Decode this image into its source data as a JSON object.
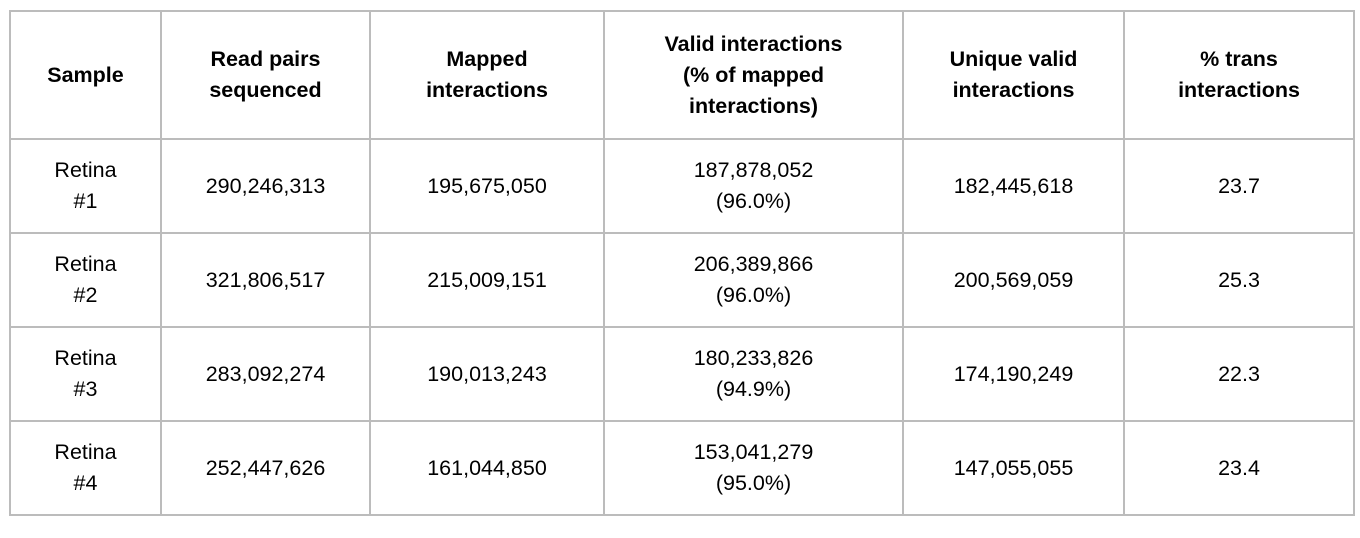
{
  "colors": {
    "background": "#ffffff",
    "border": "#bcbcbc",
    "text": "#000000"
  },
  "table": {
    "columns": [
      {
        "key": "sample",
        "label": "Sample"
      },
      {
        "key": "read_pairs",
        "label": "Read pairs\nsequenced"
      },
      {
        "key": "mapped",
        "label": "Mapped\ninteractions"
      },
      {
        "key": "valid",
        "label": "Valid interactions\n(% of mapped\ninteractions)"
      },
      {
        "key": "unique_valid",
        "label": "Unique valid\ninteractions"
      },
      {
        "key": "pct_trans",
        "label": "% trans\ninteractions"
      }
    ],
    "rows": [
      {
        "sample": "Retina\n#1",
        "read_pairs": "290,246,313",
        "mapped": "195,675,050",
        "valid": "187,878,052\n(96.0%)",
        "unique_valid": "182,445,618",
        "pct_trans": "23.7"
      },
      {
        "sample": "Retina\n#2",
        "read_pairs": "321,806,517",
        "mapped": "215,009,151",
        "valid": "206,389,866\n(96.0%)",
        "unique_valid": "200,569,059",
        "pct_trans": "25.3"
      },
      {
        "sample": "Retina\n#3",
        "read_pairs": "283,092,274",
        "mapped": "190,013,243",
        "valid": "180,233,826\n(94.9%)",
        "unique_valid": "174,190,249",
        "pct_trans": "22.3"
      },
      {
        "sample": "Retina\n#4",
        "read_pairs": "252,447,626",
        "mapped": "161,044,850",
        "valid": "153,041,279\n(95.0%)",
        "unique_valid": "147,055,055",
        "pct_trans": "23.4"
      }
    ]
  },
  "chart_data": {
    "type": "table",
    "title": "",
    "columns": [
      "Sample",
      "Read pairs sequenced",
      "Mapped interactions",
      "Valid interactions (% of mapped interactions)",
      "Unique valid interactions",
      "% trans interactions"
    ],
    "rows": [
      [
        "Retina #1",
        290246313,
        195675050,
        "187878052 (96.0%)",
        182445618,
        23.7
      ],
      [
        "Retina #2",
        321806517,
        215009151,
        "206389866 (96.0%)",
        200569059,
        25.3
      ],
      [
        "Retina #3",
        283092274,
        190013243,
        "180233826 (94.9%)",
        174190249,
        22.3
      ],
      [
        "Retina #4",
        252447626,
        161044850,
        "153041279 (95.0%)",
        147055055,
        23.4
      ]
    ]
  }
}
